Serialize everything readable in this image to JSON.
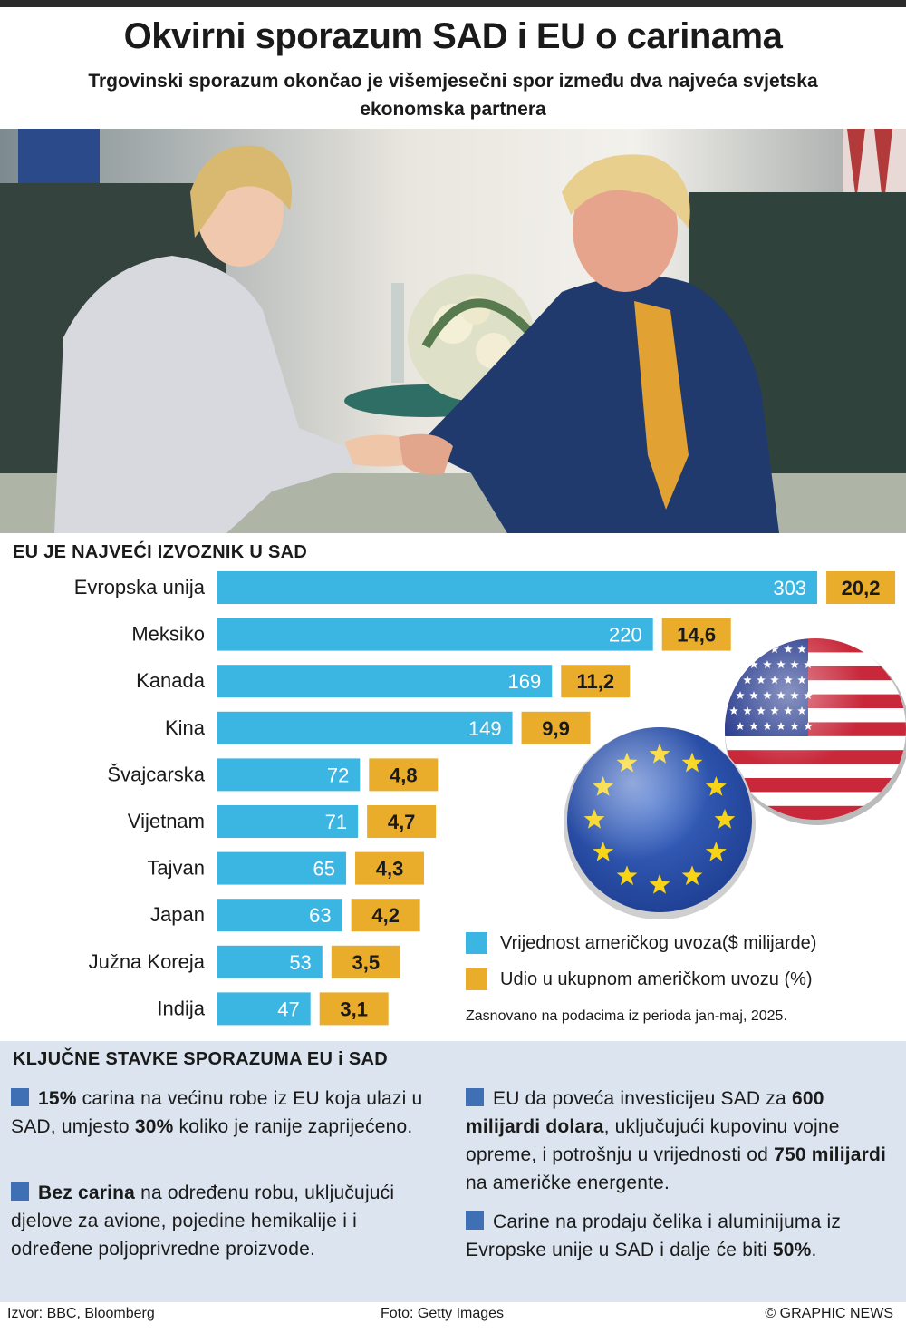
{
  "title": "Okvirni sporazum SAD i EU o carinama",
  "subtitle": "Trgovinski sporazum okončao je višemjesečni spor između dva najveća svjetska ekonomska partnera",
  "photo": {
    "description_icon": "handshake-photo"
  },
  "chart_section_title": "EU JE NAJVEĆI IZVOZNIK U SAD",
  "colors": {
    "bar_value": "#3bb6e3",
    "bar_share": "#e9ad2b",
    "panel_bg": "#dbe4ef",
    "bullet": "#3f6fb5"
  },
  "chart_data": {
    "type": "bar",
    "orientation": "horizontal",
    "categories": [
      "Evropska unija",
      "Meksiko",
      "Kanada",
      "Kina",
      "Švajcarska",
      "Vijetnam",
      "Tajvan",
      "Japan",
      "Južna Koreja",
      "Indija"
    ],
    "series": [
      {
        "name": "Vrijednost američkog uvoza($ milijarde)",
        "values": [
          303,
          220,
          169,
          149,
          72,
          71,
          65,
          63,
          53,
          47
        ],
        "labels": [
          "303",
          "220",
          "169",
          "149",
          "72",
          "71",
          "65",
          "63",
          "53",
          "47"
        ]
      },
      {
        "name": "Udio u ukupnom američkom uvozu (%)",
        "values": [
          20.2,
          14.6,
          11.2,
          9.9,
          4.8,
          4.7,
          4.3,
          4.2,
          3.5,
          3.1
        ],
        "labels": [
          "20,2",
          "14,6",
          "11,2",
          "9,9",
          "4,8",
          "4,7",
          "4,3",
          "4,2",
          "3,5",
          "3,1"
        ]
      }
    ],
    "legend_position": "bottom-right",
    "grid": false
  },
  "legend": {
    "value_label": "Vrijednost američkog uvoza($ milijarde)",
    "share_label": "Udio u ukupnom američkom uvozu (%)"
  },
  "note": "Zasnovano na podacima iz perioda jan-maj, 2025.",
  "panel_title": "KLJUČNE STAVKE SPORAZUMA EU i SAD",
  "items": {
    "i1": {
      "b1": "15%",
      "t1": " carina na većinu robe iz EU koja ulazi u SAD, umjesto ",
      "b2": "30%",
      "t2": " koliko je ranije zaprijećeno."
    },
    "i2": {
      "b1": "Bez carina",
      "t1": " na određenu robu, uključujući djelove za avione, pojedine hemikalije i i određene poljoprivredne proizvode."
    },
    "i3": {
      "t1": "EU da poveća investicijeu SAD za ",
      "b1": "600 milijardi dolara",
      "t2": ", uključujući kupovinu vojne opreme, i potrošnju u vrijednosti od ",
      "b2": "750 milijardi",
      "t3": " na američke energente."
    },
    "i4": {
      "t1": "Carine na prodaju čelika i aluminijuma iz Evropske unije u SAD i dalje će biti ",
      "b1": "50%",
      "t2": "."
    }
  },
  "footer": {
    "source": "Izvor: BBC, Bloomberg",
    "photo_credit": "Foto: Getty Images",
    "copyright": "© GRAPHIC NEWS"
  }
}
